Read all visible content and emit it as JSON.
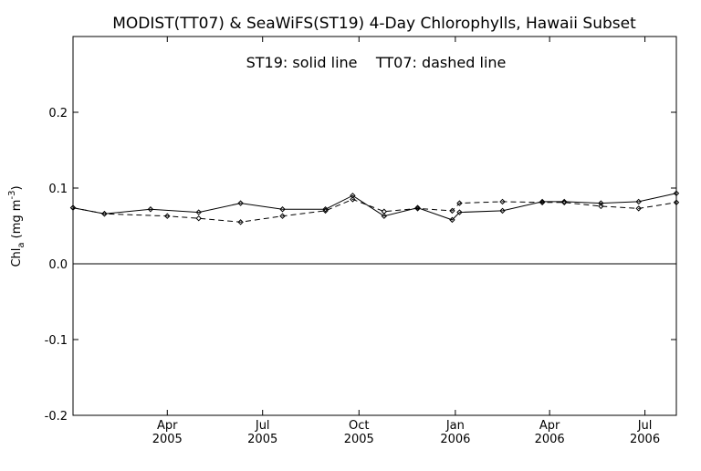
{
  "chart_data": {
    "type": "line",
    "title": "MODIST(TT07) & SeaWiFS(ST19) 4-Day Chlorophylls, Hawaii Subset",
    "annotation": "ST19: solid line    TT07: dashed line",
    "ylabel": "Chl_a (mg m^-3)",
    "ylabel_parts": {
      "main": "Chl",
      "sub": "a",
      "open": " (mg m",
      "sup": "-3",
      "close": ")"
    },
    "xlabel": "",
    "ylim": [
      -0.2,
      0.3
    ],
    "xlim": [
      "2005-01-01",
      "2006-07-31"
    ],
    "yticks": [
      {
        "value": 0.2,
        "label": "0.2"
      },
      {
        "value": 0.1,
        "label": "0.1"
      },
      {
        "value": 0.0,
        "label": "0.0"
      },
      {
        "value": -0.1,
        "label": "-0.1"
      },
      {
        "value": -0.2,
        "label": "-0.2"
      }
    ],
    "xticks": [
      {
        "date": "2005-04-01",
        "month": "Apr",
        "year": "2005"
      },
      {
        "date": "2005-07-01",
        "month": "Jul",
        "year": "2005"
      },
      {
        "date": "2005-10-01",
        "month": "Oct",
        "year": "2005"
      },
      {
        "date": "2006-01-01",
        "month": "Jan",
        "year": "2006"
      },
      {
        "date": "2006-04-01",
        "month": "Apr",
        "year": "2006"
      },
      {
        "date": "2006-07-01",
        "month": "Jul",
        "year": "2006"
      }
    ],
    "zero_line": 0.0,
    "series": [
      {
        "id": "ST19",
        "style": "solid",
        "points": [
          {
            "x": "2005-01-01",
            "y": 0.074
          },
          {
            "x": "2005-01-31",
            "y": 0.066
          },
          {
            "x": "2005-03-16",
            "y": 0.072
          },
          {
            "x": "2005-05-01",
            "y": 0.068
          },
          {
            "x": "2005-06-10",
            "y": 0.08
          },
          {
            "x": "2005-07-20",
            "y": 0.072
          },
          {
            "x": "2005-08-30",
            "y": 0.072
          },
          {
            "x": "2005-09-25",
            "y": 0.09
          },
          {
            "x": "2005-10-25",
            "y": 0.063
          },
          {
            "x": "2005-11-26",
            "y": 0.074
          },
          {
            "x": "2005-12-29",
            "y": 0.058
          },
          {
            "x": "2006-01-05",
            "y": 0.068
          },
          {
            "x": "2006-02-15",
            "y": 0.07
          },
          {
            "x": "2006-03-25",
            "y": 0.082
          },
          {
            "x": "2006-04-15",
            "y": 0.082
          },
          {
            "x": "2006-05-20",
            "y": 0.08
          },
          {
            "x": "2006-06-25",
            "y": 0.082
          },
          {
            "x": "2006-07-31",
            "y": 0.093
          }
        ]
      },
      {
        "id": "TT07",
        "style": "dashed",
        "points": [
          {
            "x": "2005-01-01",
            "y": 0.074
          },
          {
            "x": "2005-01-31",
            "y": 0.066
          },
          {
            "x": "2005-04-01",
            "y": 0.063
          },
          {
            "x": "2005-05-01",
            "y": 0.06
          },
          {
            "x": "2005-06-10",
            "y": 0.055
          },
          {
            "x": "2005-07-20",
            "y": 0.063
          },
          {
            "x": "2005-08-30",
            "y": 0.07
          },
          {
            "x": "2005-09-25",
            "y": 0.085
          },
          {
            "x": "2005-10-25",
            "y": 0.069
          },
          {
            "x": "2005-11-26",
            "y": 0.073
          },
          {
            "x": "2005-12-29",
            "y": 0.07
          },
          {
            "x": "2006-01-05",
            "y": 0.08
          },
          {
            "x": "2006-02-15",
            "y": 0.082
          },
          {
            "x": "2006-03-25",
            "y": 0.081
          },
          {
            "x": "2006-04-15",
            "y": 0.081
          },
          {
            "x": "2006-05-20",
            "y": 0.076
          },
          {
            "x": "2006-06-25",
            "y": 0.073
          },
          {
            "x": "2006-07-31",
            "y": 0.081
          }
        ]
      }
    ],
    "colors": {
      "line": "#000000",
      "background": "#ffffff"
    }
  }
}
